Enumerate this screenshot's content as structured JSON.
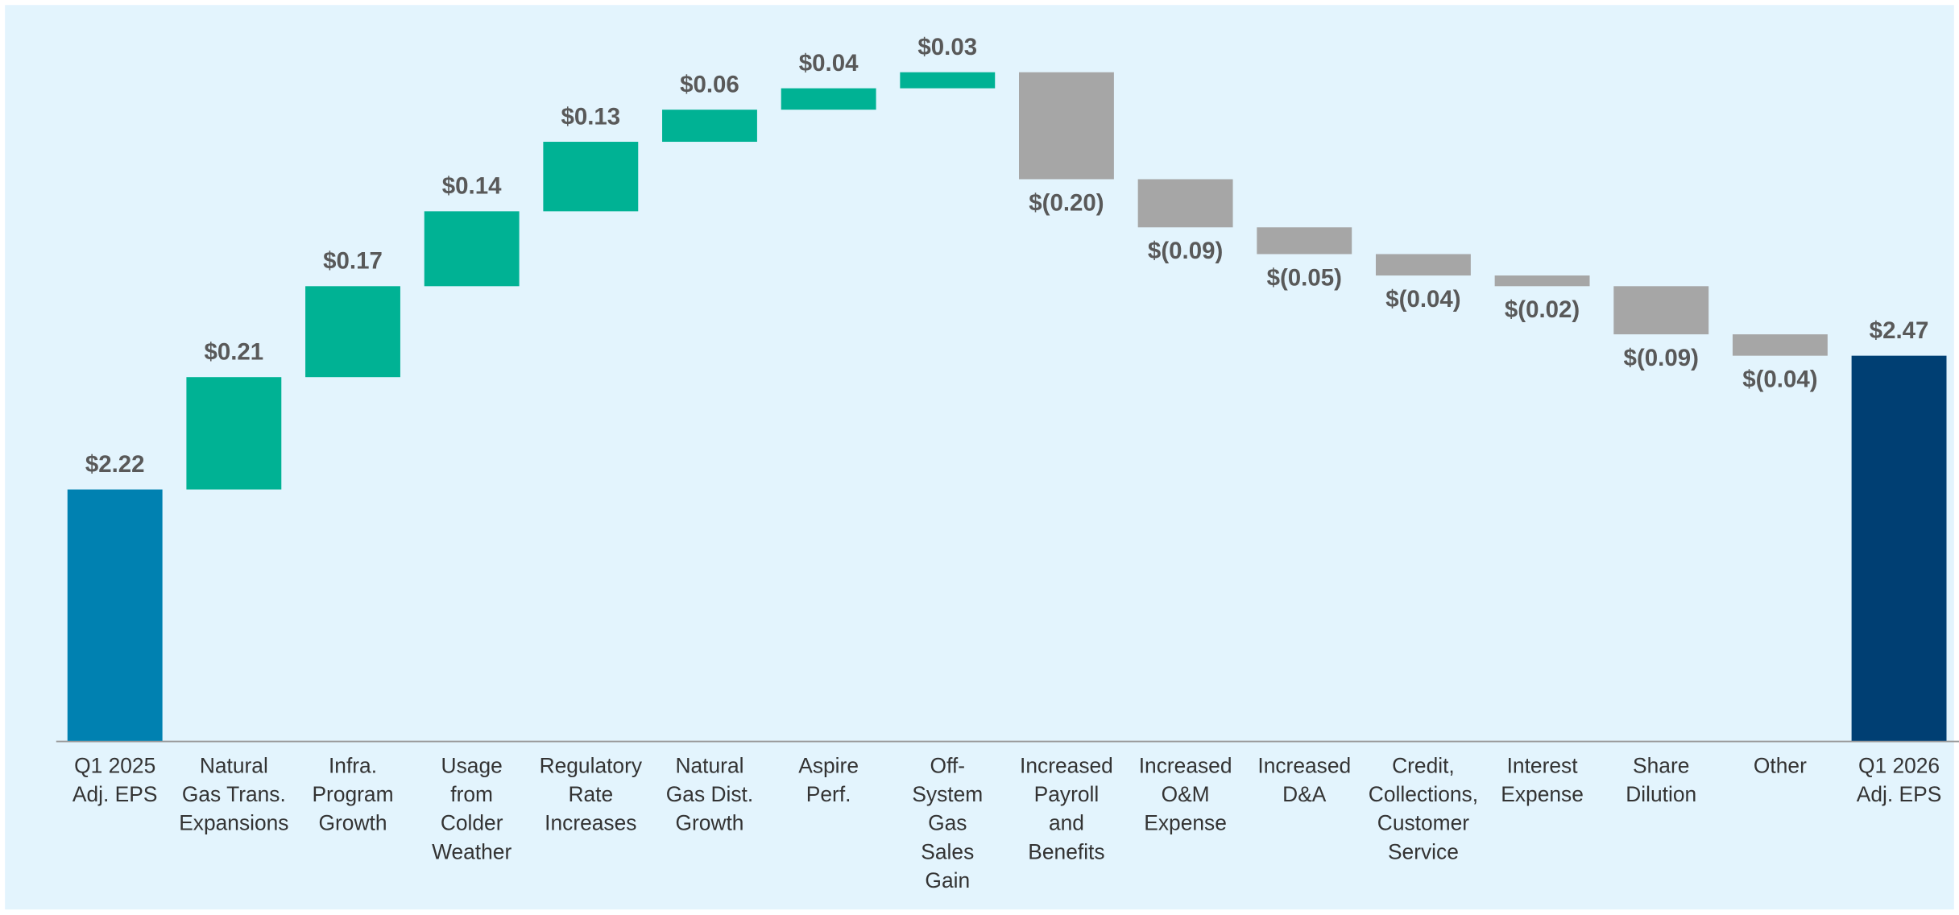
{
  "chart_data": {
    "type": "waterfall",
    "categories": [
      [
        "Q1 2025",
        "Adj. EPS"
      ],
      [
        "Natural",
        "Gas Trans.",
        "Expansions"
      ],
      [
        "Infra.",
        "Program",
        "Growth"
      ],
      [
        "Usage",
        "from",
        "Colder",
        "Weather"
      ],
      [
        "Regulatory",
        "Rate",
        "Increases"
      ],
      [
        "Natural",
        "Gas Dist.",
        "Growth"
      ],
      [
        "Aspire",
        "Perf."
      ],
      [
        "Off-",
        "System",
        "Gas",
        "Sales",
        "Gain"
      ],
      [
        "Increased",
        "Payroll",
        "and",
        "Benefits"
      ],
      [
        "Increased",
        "O&M",
        "Expense"
      ],
      [
        "Increased",
        "D&A"
      ],
      [
        "Credit,",
        "Collections,",
        "Customer",
        "Service"
      ],
      [
        "Interest",
        "Expense"
      ],
      [
        "Share",
        "Dilution"
      ],
      [
        "Other"
      ],
      [
        "Q1 2026",
        "Adj. EPS"
      ]
    ],
    "values": [
      2.22,
      0.21,
      0.17,
      0.14,
      0.13,
      0.06,
      0.04,
      0.03,
      -0.2,
      -0.09,
      -0.05,
      -0.04,
      -0.02,
      -0.09,
      -0.04,
      2.47
    ],
    "value_labels": [
      "$2.22",
      "$0.21",
      "$0.17",
      "$0.14",
      "$0.13",
      "$0.06",
      "$0.04",
      "$0.03",
      "$(0.20)",
      "$(0.09)",
      "$(0.05)",
      "$(0.04)",
      "$(0.02)",
      "$(0.09)",
      "$(0.04)",
      "$2.47"
    ],
    "kinds": [
      "total",
      "change",
      "change",
      "change",
      "change",
      "change",
      "change",
      "change",
      "change",
      "change",
      "change",
      "change",
      "change",
      "change",
      "change",
      "total"
    ],
    "colors": {
      "start": "#0081b1",
      "end": "#003f73",
      "increase": "#00b294",
      "decrease": "#a6a6a6"
    },
    "ylim": [
      1.75,
      3.1
    ]
  }
}
